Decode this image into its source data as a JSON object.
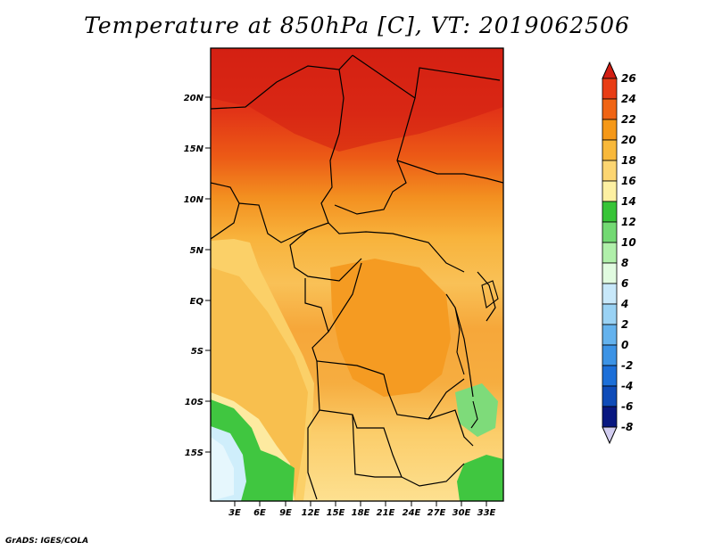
{
  "title": "Temperature at 850hPa [C], VT: 2019062506",
  "credit": "GrADS: IGES/COLA",
  "map": {
    "lat_labels": [
      "20N",
      "15N",
      "10N",
      "5N",
      "EQ",
      "5S",
      "10S",
      "15S"
    ],
    "lon_labels": [
      "3E",
      "6E",
      "9E",
      "12E",
      "15E",
      "18E",
      "21E",
      "24E",
      "27E",
      "30E",
      "33E"
    ]
  },
  "colorbar": {
    "levels": [
      "26",
      "24",
      "22",
      "20",
      "18",
      "16",
      "14",
      "12",
      "10",
      "8",
      "6",
      "4",
      "2",
      "0",
      "-2",
      "-4",
      "-6",
      "-8"
    ],
    "colors": [
      "#d21e13",
      "#e83c14",
      "#f06414",
      "#f59818",
      "#f8b83a",
      "#fcd571",
      "#fdf0a2",
      "#37c437",
      "#73d973",
      "#b0efaa",
      "#e1fbe0",
      "#c8e8fa",
      "#9ad2f4",
      "#64b2ed",
      "#3c93e5",
      "#1c6fd8",
      "#0e4bb8",
      "#081780",
      "#d2cdf0"
    ]
  }
}
